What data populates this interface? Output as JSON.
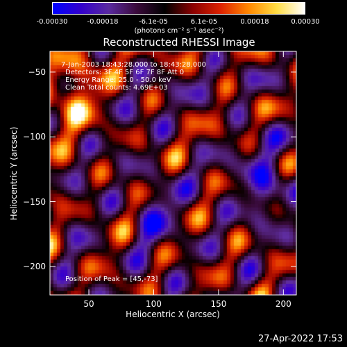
{
  "colorbar": {
    "ticks": [
      "-0.00030",
      "-0.00018",
      "-6.1e-05",
      "6.1e-05",
      "0.00018",
      "0.00030"
    ],
    "unit": "(photons cm⁻² s⁻¹ asec⁻²)",
    "colors": [
      "#0000ff",
      "#3300cc",
      "#5a2aa0",
      "#3a0a3a",
      "#000000",
      "#8a0000",
      "#dd2200",
      "#ff8800",
      "#ffdd44",
      "#ffffff"
    ]
  },
  "info_lines": [
    "7-Jan-2003 18:43:28.000 to 18:43:28.000",
    "Detectors: 3F 4F 5F 6F 7F 8F  Att 0",
    "Energy Range: 25.0 - 50.0 keV",
    "Clean    Total counts: 4.69E+03"
  ],
  "peak_label": "Position of Peak = [45,-73]",
  "chart_data": {
    "type": "heatmap",
    "title": "Reconstructed RHESSI Image",
    "xlabel": "Heliocentric X (arcsec)",
    "ylabel": "Heliocentric Y (arcsec)",
    "xlim": [
      20,
      210
    ],
    "ylim": [
      -222,
      -34
    ],
    "xticks": [
      50,
      100,
      150,
      200
    ],
    "yticks": [
      -50,
      -100,
      -150,
      -200
    ],
    "zlim": [
      -0.0003,
      0.0003
    ],
    "peak": [
      45,
      -73
    ]
  },
  "timestamp": "27-Apr-2022 17:53"
}
